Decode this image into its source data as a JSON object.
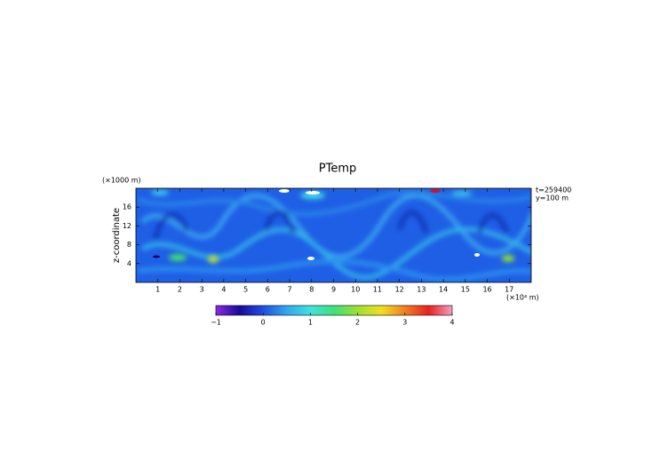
{
  "chart_data": {
    "type": "heatmap",
    "title": "PTemp",
    "xlabel": "(×10⁴ m)",
    "ylabel": "z-coordinate",
    "yunit": "(×1000 m)",
    "annotations": [
      "t=259400",
      "y=100 m"
    ],
    "xlim": [
      0,
      18
    ],
    "xticks": [
      1,
      2,
      3,
      4,
      5,
      6,
      7,
      8,
      9,
      10,
      11,
      12,
      13,
      14,
      15,
      16,
      17
    ],
    "ylim": [
      0,
      20
    ],
    "yticks": [
      4,
      8,
      12,
      16
    ],
    "colorbar": {
      "lim": [
        -1,
        4
      ],
      "ticks": [
        {
          "value": -1,
          "label": "−1"
        },
        0,
        1,
        2,
        3,
        4
      ],
      "colors": [
        "#8a2be2",
        "#1a0a9a",
        "#1f4fe0",
        "#2fa8f0",
        "#40e0e0",
        "#3ee07a",
        "#9ee030",
        "#f0e020",
        "#f08020",
        "#e82020",
        "#f4a0c0"
      ]
    }
  }
}
